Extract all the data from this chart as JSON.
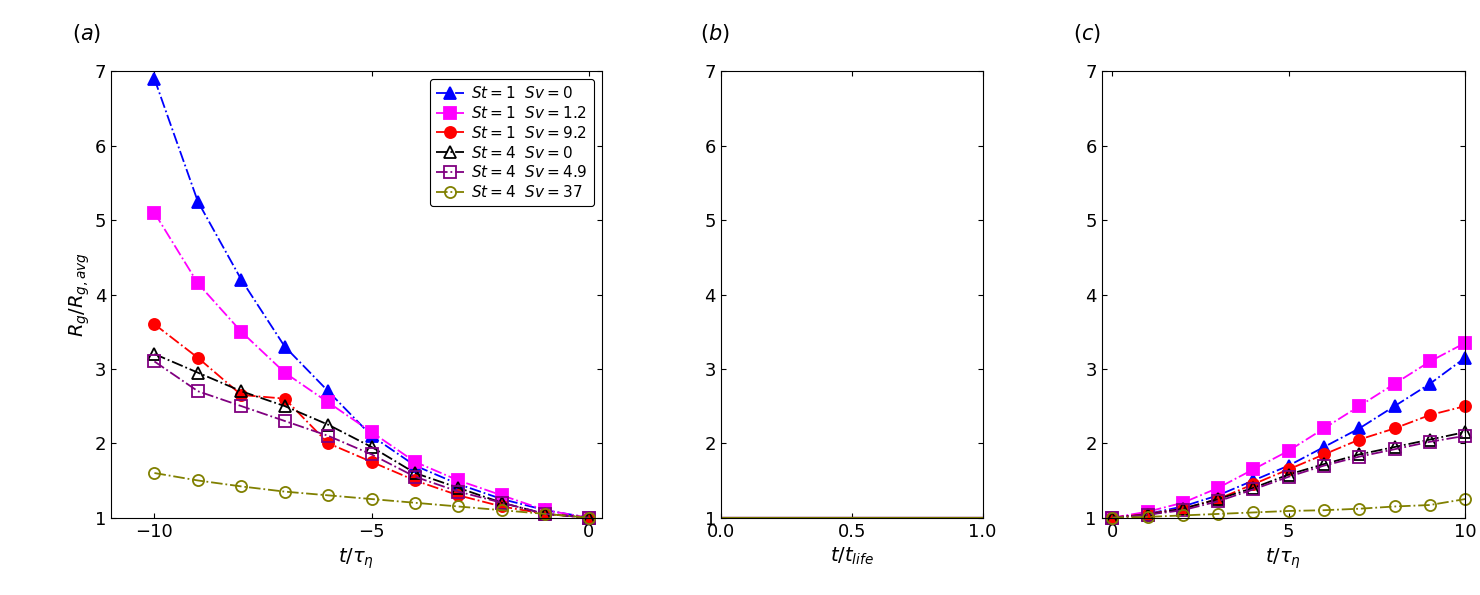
{
  "panel_a": {
    "title": "$(a)$",
    "xlabel": "$t/\\tau_\\eta$",
    "ylabel": "$R_g/R_{g,avg}$",
    "xlim": [
      -11,
      0.3
    ],
    "ylim": [
      1,
      7
    ],
    "xticks": [
      -10,
      -5,
      0
    ],
    "yticks": [
      1,
      2,
      3,
      4,
      5,
      6,
      7
    ],
    "series": [
      {
        "label": "$\\mathit{St}=1\\ \\ \\mathit{Sv}=0$",
        "color": "#0000FF",
        "marker": "^",
        "filled": true,
        "x": [
          -10,
          -9,
          -8,
          -7,
          -6,
          -5,
          -4,
          -3,
          -2,
          -1,
          0
        ],
        "y": [
          6.9,
          5.25,
          4.2,
          3.3,
          2.7,
          2.1,
          1.7,
          1.45,
          1.25,
          1.1,
          1.0
        ]
      },
      {
        "label": "$\\mathit{St}=1\\ \\ \\mathit{Sv}=1.2$",
        "color": "#FF00FF",
        "marker": "s",
        "filled": true,
        "x": [
          -10,
          -9,
          -8,
          -7,
          -6,
          -5,
          -4,
          -3,
          -2,
          -1,
          0
        ],
        "y": [
          5.1,
          4.15,
          3.5,
          2.95,
          2.55,
          2.15,
          1.75,
          1.5,
          1.3,
          1.1,
          1.0
        ]
      },
      {
        "label": "$\\mathit{St}=1\\ \\ \\mathit{Sv}=9.2$",
        "color": "#FF0000",
        "marker": "o",
        "filled": true,
        "x": [
          -10,
          -9,
          -8,
          -7,
          -6,
          -5,
          -4,
          -3,
          -2,
          -1,
          0
        ],
        "y": [
          3.6,
          3.15,
          2.65,
          2.6,
          2.0,
          1.75,
          1.5,
          1.3,
          1.15,
          1.05,
          1.0
        ]
      },
      {
        "label": "$\\mathit{St}=4\\ \\ \\mathit{Sv}=0$",
        "color": "#000000",
        "marker": "^",
        "filled": false,
        "x": [
          -10,
          -9,
          -8,
          -7,
          -6,
          -5,
          -4,
          -3,
          -2,
          -1,
          0
        ],
        "y": [
          3.2,
          2.95,
          2.7,
          2.5,
          2.25,
          1.95,
          1.6,
          1.4,
          1.2,
          1.05,
          1.0
        ]
      },
      {
        "label": "$\\mathit{St}=4\\ \\ \\mathit{Sv}=4.9$",
        "color": "#800080",
        "marker": "s",
        "filled": false,
        "x": [
          -10,
          -9,
          -8,
          -7,
          -6,
          -5,
          -4,
          -3,
          -2,
          -1,
          0
        ],
        "y": [
          3.1,
          2.7,
          2.5,
          2.3,
          2.1,
          1.85,
          1.55,
          1.35,
          1.2,
          1.05,
          1.0
        ]
      },
      {
        "label": "$\\mathit{St}=4\\ \\ \\mathit{Sv}=37$",
        "color": "#808000",
        "marker": "o",
        "filled": false,
        "x": [
          -10,
          -9,
          -8,
          -7,
          -6,
          -5,
          -4,
          -3,
          -2,
          -1,
          0
        ],
        "y": [
          1.6,
          1.5,
          1.42,
          1.35,
          1.3,
          1.25,
          1.2,
          1.15,
          1.1,
          1.05,
          1.0
        ]
      }
    ]
  },
  "panel_b": {
    "title": "$(b)$",
    "xlabel": "$t/t_{life}$",
    "ylabel": "",
    "xlim": [
      0,
      1.0
    ],
    "ylim": [
      1,
      7
    ],
    "xticks": [
      0,
      0.5,
      1.0
    ],
    "yticks": [
      1,
      2,
      3,
      4,
      5,
      6,
      7
    ],
    "series": [
      {
        "color": "#0000FF",
        "marker": "^",
        "filled": true,
        "x": [
          0.0,
          0.25,
          0.5,
          0.75,
          1.0
        ],
        "y": [
          1.0,
          1.0,
          1.0,
          1.0,
          1.0
        ]
      },
      {
        "color": "#FF00FF",
        "marker": "s",
        "filled": true,
        "x": [
          0.0,
          0.25,
          0.5,
          0.75,
          1.0
        ],
        "y": [
          1.0,
          1.0,
          1.0,
          1.0,
          1.0
        ]
      },
      {
        "color": "#FF0000",
        "marker": "o",
        "filled": true,
        "x": [
          0.0,
          0.25,
          0.5,
          0.75,
          1.0
        ],
        "y": [
          1.0,
          1.0,
          1.0,
          1.0,
          1.0
        ]
      },
      {
        "color": "#000000",
        "marker": "^",
        "filled": false,
        "x": [
          0.0,
          0.25,
          0.5,
          0.75,
          1.0
        ],
        "y": [
          1.0,
          1.0,
          1.0,
          1.0,
          1.0
        ]
      },
      {
        "color": "#800080",
        "marker": "s",
        "filled": false,
        "x": [
          0.0,
          0.25,
          0.5,
          0.75,
          1.0
        ],
        "y": [
          1.0,
          1.0,
          1.0,
          1.0,
          1.0
        ]
      },
      {
        "color": "#808000",
        "marker": "o",
        "filled": false,
        "x": [
          0.0,
          0.25,
          0.5,
          0.75,
          1.0
        ],
        "y": [
          1.0,
          1.0,
          1.0,
          1.0,
          1.0
        ]
      }
    ]
  },
  "panel_c": {
    "title": "$(c)$",
    "xlabel": "$t/\\tau_\\eta$",
    "ylabel": "",
    "xlim": [
      -0.3,
      10
    ],
    "ylim": [
      1,
      7
    ],
    "xticks": [
      0,
      5,
      10
    ],
    "yticks": [
      1,
      2,
      3,
      4,
      5,
      6,
      7
    ],
    "series": [
      {
        "color": "#0000FF",
        "marker": "^",
        "filled": true,
        "x": [
          0,
          1,
          2,
          3,
          4,
          5,
          6,
          7,
          8,
          9,
          10
        ],
        "y": [
          1.0,
          1.05,
          1.15,
          1.3,
          1.5,
          1.7,
          1.95,
          2.2,
          2.5,
          2.8,
          3.15
        ]
      },
      {
        "color": "#FF00FF",
        "marker": "s",
        "filled": true,
        "x": [
          0,
          1,
          2,
          3,
          4,
          5,
          6,
          7,
          8,
          9,
          10
        ],
        "y": [
          1.0,
          1.08,
          1.2,
          1.4,
          1.65,
          1.9,
          2.2,
          2.5,
          2.8,
          3.1,
          3.35
        ]
      },
      {
        "color": "#FF0000",
        "marker": "o",
        "filled": true,
        "x": [
          0,
          1,
          2,
          3,
          4,
          5,
          6,
          7,
          8,
          9,
          10
        ],
        "y": [
          1.0,
          1.05,
          1.12,
          1.25,
          1.45,
          1.65,
          1.85,
          2.05,
          2.2,
          2.38,
          2.5
        ]
      },
      {
        "color": "#000000",
        "marker": "^",
        "filled": false,
        "x": [
          0,
          1,
          2,
          3,
          4,
          5,
          6,
          7,
          8,
          9,
          10
        ],
        "y": [
          1.0,
          1.04,
          1.12,
          1.25,
          1.4,
          1.58,
          1.72,
          1.85,
          1.95,
          2.05,
          2.15
        ]
      },
      {
        "color": "#800080",
        "marker": "s",
        "filled": false,
        "x": [
          0,
          1,
          2,
          3,
          4,
          5,
          6,
          7,
          8,
          9,
          10
        ],
        "y": [
          1.0,
          1.04,
          1.1,
          1.22,
          1.38,
          1.55,
          1.7,
          1.82,
          1.92,
          2.02,
          2.1
        ]
      },
      {
        "color": "#808000",
        "marker": "o",
        "filled": false,
        "x": [
          0,
          1,
          2,
          3,
          4,
          5,
          6,
          7,
          8,
          9,
          10
        ],
        "y": [
          1.0,
          1.01,
          1.03,
          1.05,
          1.07,
          1.09,
          1.1,
          1.12,
          1.15,
          1.17,
          1.25
        ]
      }
    ]
  }
}
